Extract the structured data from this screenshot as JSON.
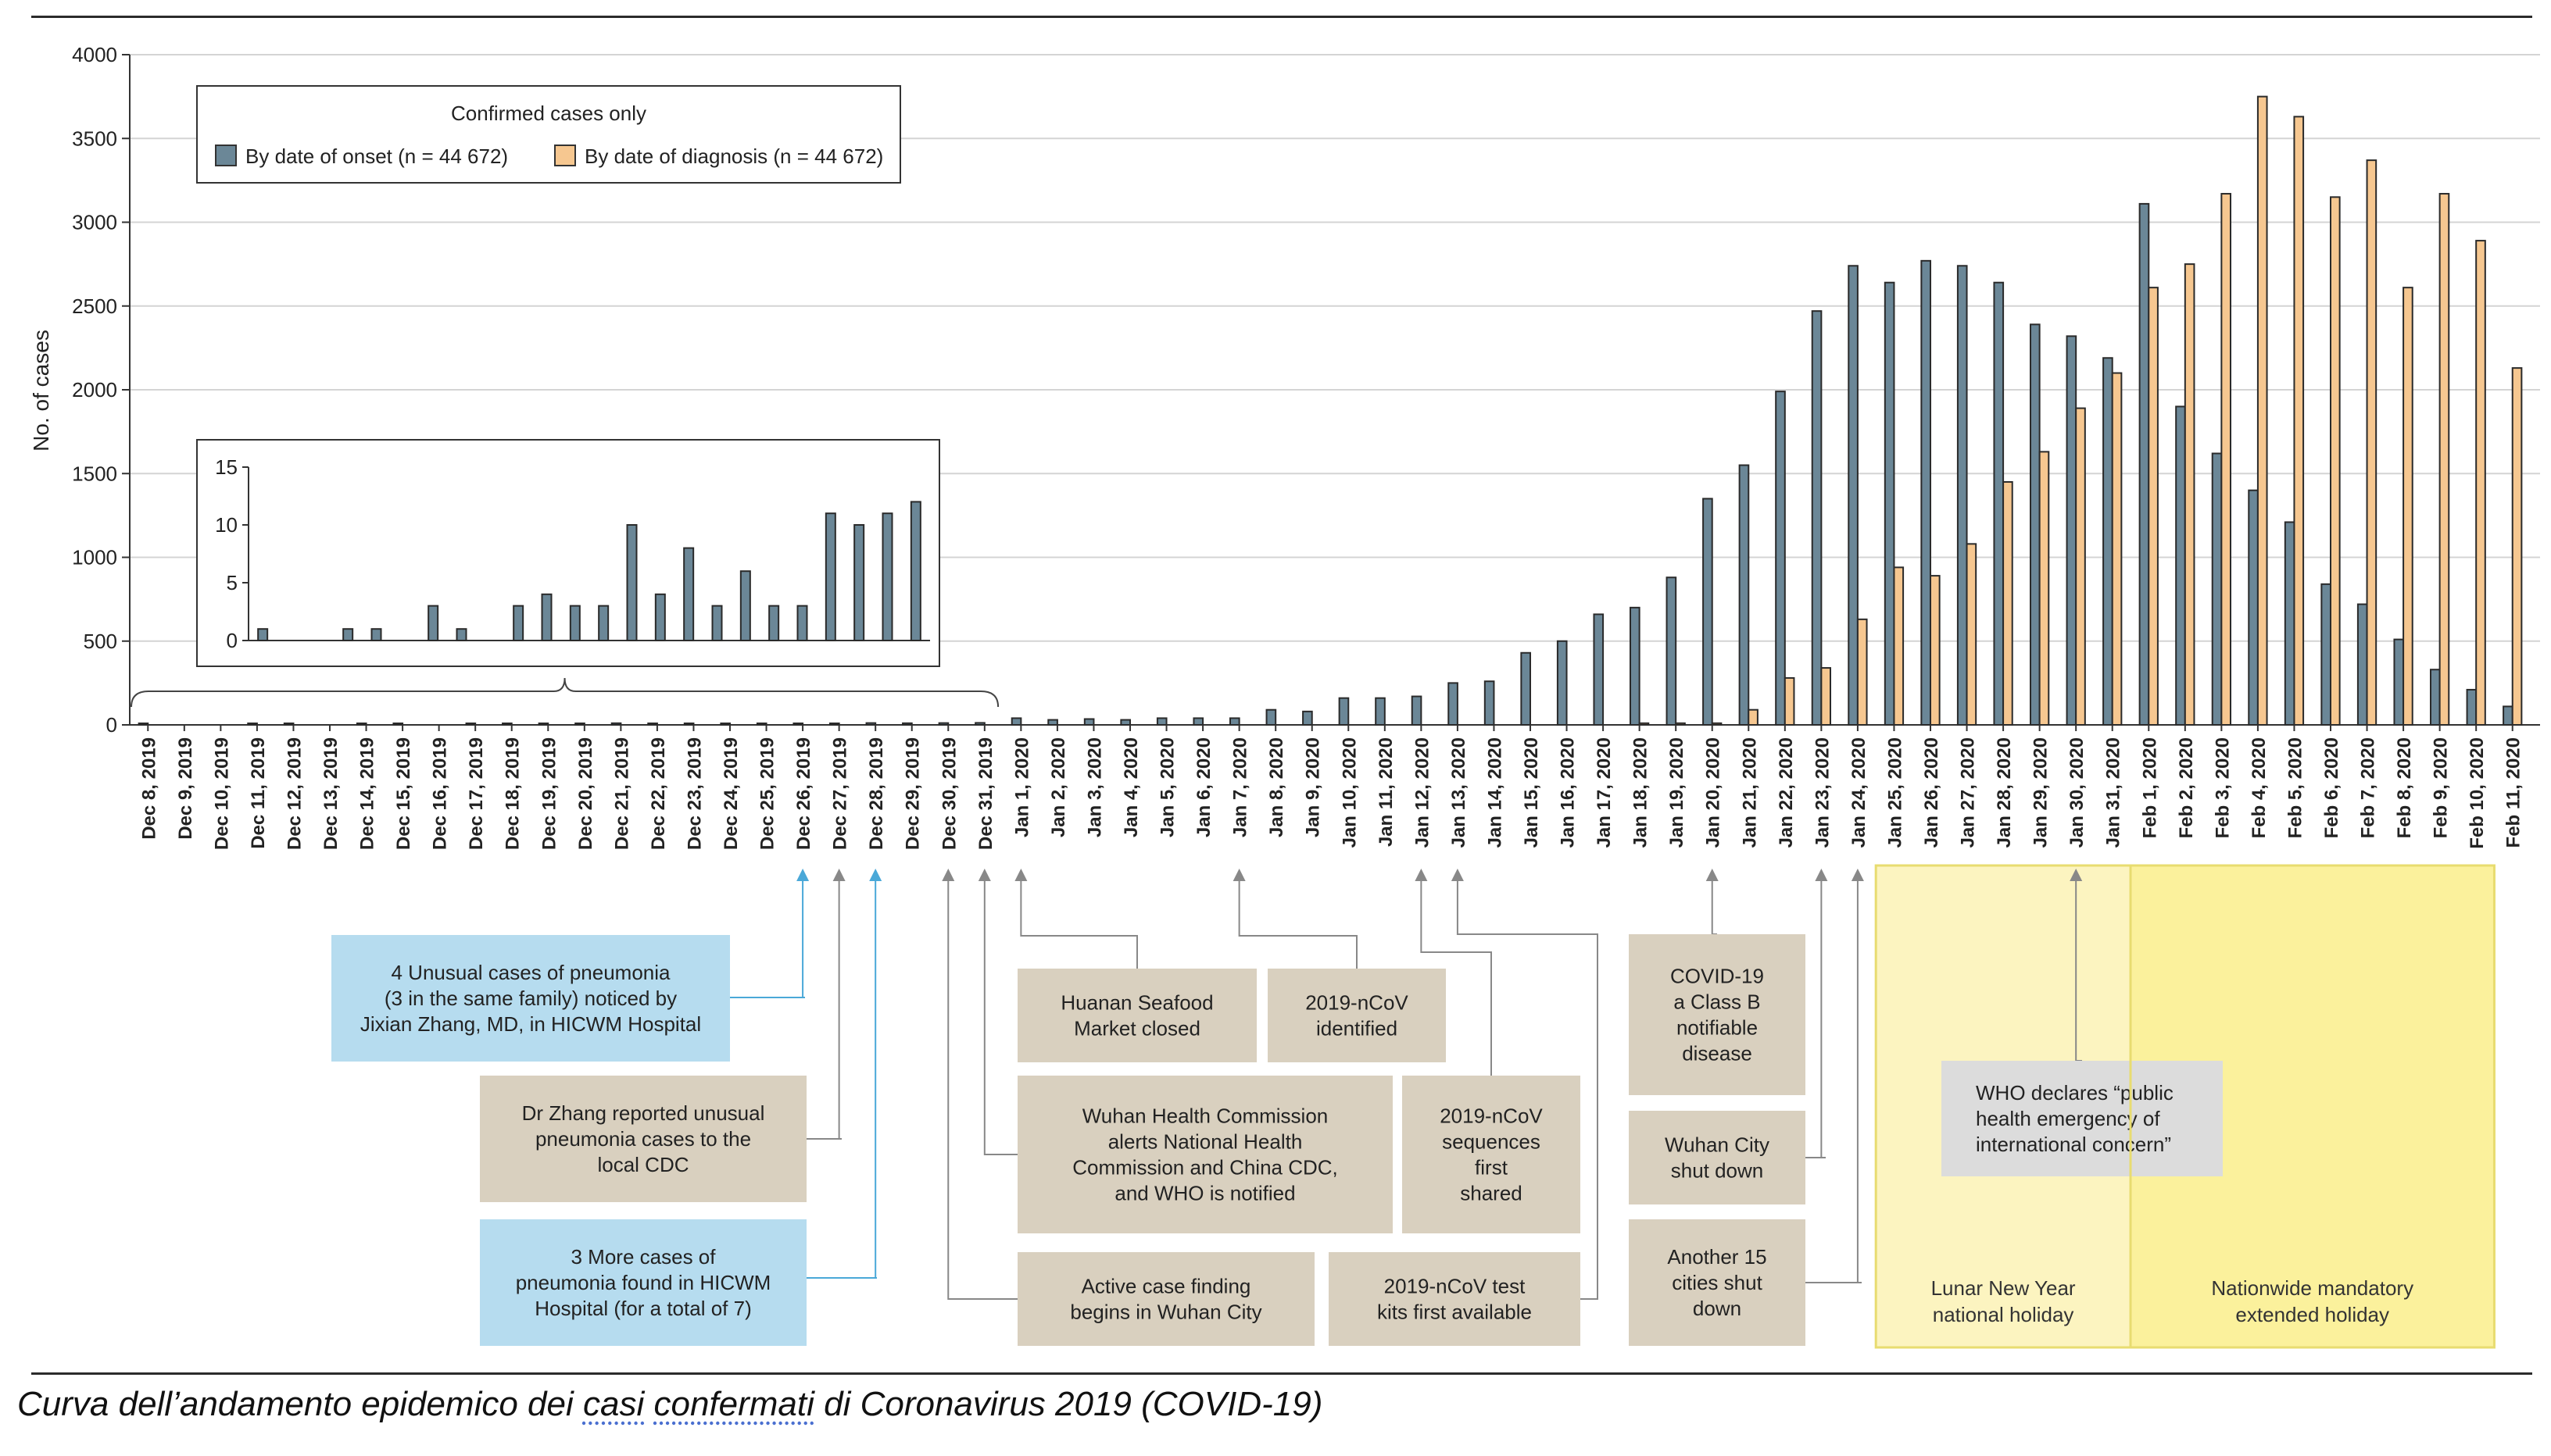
{
  "chart_data": {
    "type": "bar",
    "ylabel": "No. of cases",
    "ylim": [
      0,
      4000
    ],
    "yticks": [
      0,
      500,
      1000,
      1500,
      2000,
      2500,
      3000,
      3500,
      4000
    ],
    "grid": true,
    "legend_title": "Confirmed cases only",
    "legend_position": "top-left",
    "categories": [
      "Dec 8, 2019",
      "Dec 9, 2019",
      "Dec 10, 2019",
      "Dec 11, 2019",
      "Dec 12, 2019",
      "Dec 13, 2019",
      "Dec 14, 2019",
      "Dec 15, 2019",
      "Dec 16, 2019",
      "Dec 17, 2019",
      "Dec 18, 2019",
      "Dec 19, 2019",
      "Dec 20, 2019",
      "Dec 21, 2019",
      "Dec 22, 2019",
      "Dec 23, 2019",
      "Dec 24, 2019",
      "Dec 25, 2019",
      "Dec 26, 2019",
      "Dec 27, 2019",
      "Dec 28, 2019",
      "Dec 29, 2019",
      "Dec 30, 2019",
      "Dec 31, 2019",
      "Jan 1, 2020",
      "Jan 2, 2020",
      "Jan 3, 2020",
      "Jan 4, 2020",
      "Jan 5, 2020",
      "Jan 6, 2020",
      "Jan 7, 2020",
      "Jan 8, 2020",
      "Jan 9, 2020",
      "Jan 10, 2020",
      "Jan 11, 2020",
      "Jan 12, 2020",
      "Jan 13, 2020",
      "Jan 14, 2020",
      "Jan 15, 2020",
      "Jan 16, 2020",
      "Jan 17, 2020",
      "Jan 18, 2020",
      "Jan 19, 2020",
      "Jan 20, 2020",
      "Jan 21, 2020",
      "Jan 22, 2020",
      "Jan 23, 2020",
      "Jan 24, 2020",
      "Jan 25, 2020",
      "Jan 26, 2020",
      "Jan 27, 2020",
      "Jan 28, 2020",
      "Jan 29, 2020",
      "Jan 30, 2020",
      "Jan 31, 2020",
      "Feb 1, 2020",
      "Feb 2, 2020",
      "Feb 3, 2020",
      "Feb 4, 2020",
      "Feb 5, 2020",
      "Feb 6, 2020",
      "Feb 7, 2020",
      "Feb 8, 2020",
      "Feb 9, 2020",
      "Feb 10, 2020",
      "Feb 11, 2020"
    ],
    "series": [
      {
        "name": "By date of onset (n = 44 672)",
        "color": "#6b8797",
        "values": [
          1,
          0,
          0,
          1,
          1,
          0,
          3,
          1,
          0,
          3,
          4,
          3,
          3,
          10,
          4,
          8,
          3,
          6,
          3,
          3,
          11,
          10,
          11,
          12,
          40,
          30,
          35,
          30,
          40,
          40,
          40,
          90,
          80,
          160,
          160,
          170,
          250,
          260,
          430,
          500,
          660,
          700,
          880,
          1350,
          1550,
          1990,
          2470,
          2740,
          2640,
          2770,
          2740,
          2640,
          2390,
          2320,
          2190,
          3110,
          1900,
          1620,
          1400,
          1210,
          840,
          720,
          510,
          330,
          210,
          110
        ]
      },
      {
        "name": "By date of diagnosis (n = 44 672)",
        "color": "#f6c790",
        "values": [
          0,
          0,
          0,
          0,
          0,
          0,
          0,
          0,
          0,
          0,
          0,
          0,
          0,
          0,
          0,
          0,
          0,
          0,
          0,
          0,
          0,
          0,
          0,
          0,
          0,
          0,
          0,
          0,
          0,
          0,
          0,
          0,
          0,
          0,
          0,
          0,
          0,
          0,
          0,
          0,
          0,
          10,
          10,
          10,
          90,
          280,
          340,
          630,
          940,
          890,
          1080,
          1450,
          1630,
          1890,
          2100,
          2610,
          2750,
          3170,
          3750,
          3630,
          3150,
          3370,
          2610,
          3170,
          2890,
          2130
        ]
      }
    ],
    "inset": {
      "ylim": [
        0,
        15
      ],
      "yticks": [
        0,
        5,
        10,
        15
      ],
      "categories": [
        "Dec 8, 2019",
        "Dec 9, 2019",
        "Dec 10, 2019",
        "Dec 11, 2019",
        "Dec 12, 2019",
        "Dec 13, 2019",
        "Dec 14, 2019",
        "Dec 15, 2019",
        "Dec 16, 2019",
        "Dec 17, 2019",
        "Dec 18, 2019",
        "Dec 19, 2019",
        "Dec 20, 2019",
        "Dec 21, 2019",
        "Dec 22, 2019",
        "Dec 23, 2019",
        "Dec 24, 2019",
        "Dec 25, 2019",
        "Dec 26, 2019",
        "Dec 27, 2019",
        "Dec 28, 2019",
        "Dec 29, 2019",
        "Dec 30, 2019",
        "Dec 31, 2019"
      ],
      "values": [
        1,
        0,
        0,
        1,
        1,
        0,
        3,
        1,
        0,
        3,
        4,
        3,
        3,
        10,
        4,
        8,
        3,
        6,
        3,
        3,
        11,
        10,
        11,
        12
      ]
    },
    "periods": [
      {
        "label": "Lunar New Year national holiday",
        "from": "Jan 25, 2020",
        "to": "Jan 31, 2020",
        "color": "#fcf4c0"
      },
      {
        "label": "Nationwide mandatory extended holiday",
        "from": "Feb 1, 2020",
        "to": "Feb 10, 2020",
        "color": "#fbf19c"
      }
    ],
    "annotations": [
      {
        "text": "4 Unusual cases of pneumonia (3 in the same family) noticed by Jixian Zhang, MD, in HICWM Hospital",
        "date": "Dec 26, 2019",
        "color": "#b6dcef"
      },
      {
        "text": "Dr Zhang reported unusual pneumonia cases to the local CDC",
        "date": "Dec 27, 2019",
        "color": "#d9d0bf"
      },
      {
        "text": "3 More cases of pneumonia found in HICWM Hospital (for a total of 7)",
        "date": "Dec 28, 2019",
        "color": "#b6dcef"
      },
      {
        "text": "Active case finding begins in Wuhan City",
        "date": "Dec 30, 2019",
        "color": "#d9d0bf"
      },
      {
        "text": "Wuhan Health Commission alerts National Health Commission and China CDC, and WHO is notified",
        "date": "Dec 31, 2019",
        "color": "#d9d0bf"
      },
      {
        "text": "Huanan Seafood Market closed",
        "date": "Jan 1, 2020",
        "color": "#d9d0bf"
      },
      {
        "text": "2019-nCoV identified",
        "date": "Jan 7, 2020",
        "color": "#d9d0bf"
      },
      {
        "text": "2019-nCoV sequences first shared",
        "date": "Jan 12, 2020",
        "color": "#d9d0bf"
      },
      {
        "text": "2019-nCoV test kits first available",
        "date": "Jan 13, 2020",
        "color": "#d9d0bf"
      },
      {
        "text": "COVID-19 a Class B notifiable disease",
        "date": "Jan 20, 2020",
        "color": "#d9d0bf"
      },
      {
        "text": "Wuhan City shut down",
        "date": "Jan 23, 2020",
        "color": "#d9d0bf"
      },
      {
        "text": "Another 15 cities shut down",
        "date": "Jan 24, 2020",
        "color": "#d9d0bf"
      },
      {
        "text": "WHO declares “public health emergency of international concern”",
        "date": "Jan 30, 2020",
        "color": "#dcdcdc"
      }
    ]
  },
  "caption": {
    "pre": "Curva dell’andamento epidemico dei ",
    "casi": "casi",
    "mid": "  ",
    "confermati": "confermati",
    "post": " di Coronavirus  2019 (COVID-19)"
  }
}
